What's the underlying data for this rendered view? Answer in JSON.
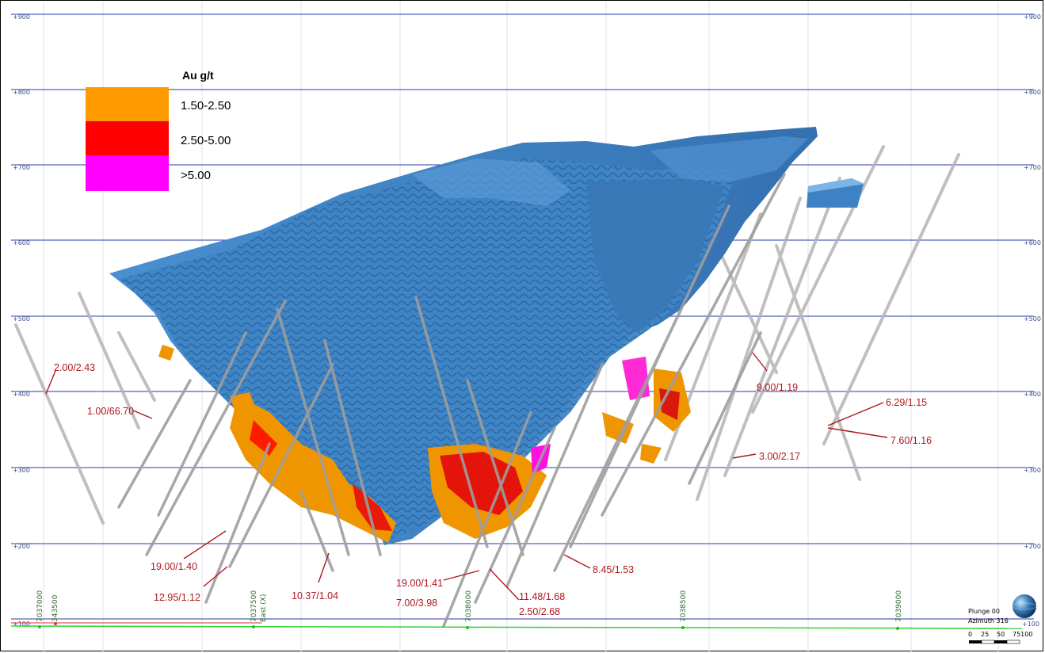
{
  "elevations": [
    "+900",
    "+800",
    "+700",
    "+600",
    "+500",
    "+400",
    "+300",
    "+200",
    "+100"
  ],
  "northings": [
    "7037000",
    "343500",
    "7037500",
    "East (X)",
    "7038000",
    "7038500",
    "7039000"
  ],
  "legend": {
    "title": "Au g/t",
    "items": [
      {
        "label": "1.50-2.50",
        "color": "#ff9a00"
      },
      {
        "label": "2.50-5.00",
        "color": "#ff0000"
      },
      {
        "label": ">5.00",
        "color": "#ff00ff"
      }
    ]
  },
  "annotations": [
    "2.00/2.43",
    "1.00/66.70",
    "19.00/1.40",
    "12.95/1.12",
    "10.37/1.04",
    "19.00/1.41",
    "7.00/3.98",
    "11.48/1.68",
    "2.50/2.68",
    "8.45/1.53",
    "9.00/1.19",
    "3.00/2.17",
    "6.29/1.15",
    "7.60/1.16"
  ],
  "view": {
    "plunge": "Plunge 00",
    "azimuth": "Azimuth 316"
  },
  "scale_ticks": [
    "0",
    "25",
    "50",
    "75100"
  ],
  "colors": {
    "body": "#3d82c4",
    "grid": "#2a3aa8",
    "annotation": "#b0181e",
    "drillhole": "#a9a9a9",
    "baseline": "#22cc22"
  }
}
